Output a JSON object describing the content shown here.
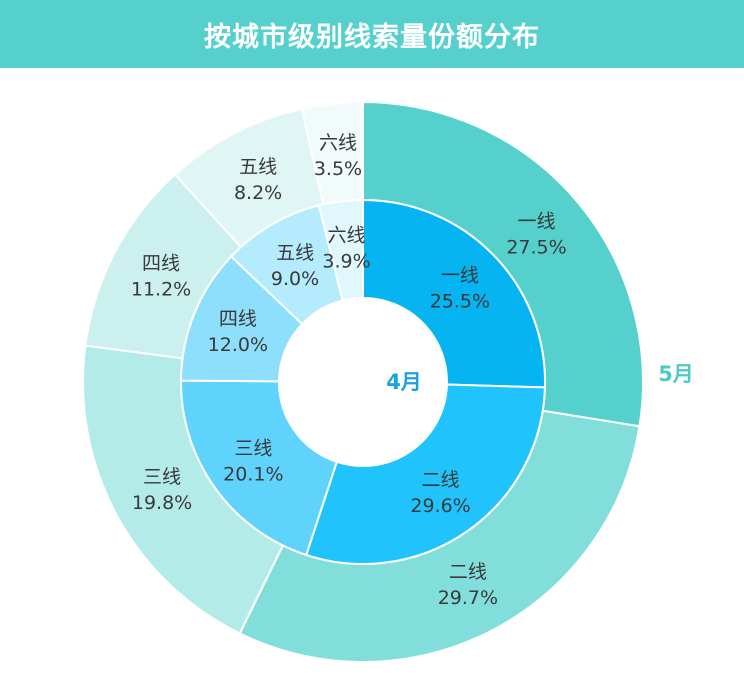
{
  "chart_data": {
    "type": "pie",
    "title": "按城市级别线索量份额分布",
    "rings": [
      {
        "name": "4月",
        "categories": [
          "一线",
          "二线",
          "三线",
          "四线",
          "五线",
          "六线"
        ],
        "values": [
          25.5,
          29.6,
          20.1,
          12.0,
          9.0,
          3.9
        ],
        "value_labels": [
          "25.5%",
          "29.6%",
          "20.1%",
          "12.0%",
          "9.0%",
          "3.9%"
        ],
        "colors": [
          "#05b4f1",
          "#20c3fb",
          "#5fd3fc",
          "#8ddffb",
          "#b4ebfd",
          "#e1f7fe"
        ],
        "label_color": "#1aa3df"
      },
      {
        "name": "5月",
        "categories": [
          "一线",
          "二线",
          "三线",
          "四线",
          "五线",
          "六线"
        ],
        "values": [
          27.5,
          29.7,
          19.8,
          11.2,
          8.2,
          3.5
        ],
        "value_labels": [
          "27.5%",
          "29.7%",
          "19.8%",
          "11.2%",
          "8.2%",
          "3.5%"
        ],
        "colors": [
          "#55d0cd",
          "#82deda",
          "#b2ebe8",
          "#cbf0ee",
          "#e0f6f5",
          "#f1fbfb"
        ],
        "label_color": "#4dcac6"
      }
    ]
  }
}
